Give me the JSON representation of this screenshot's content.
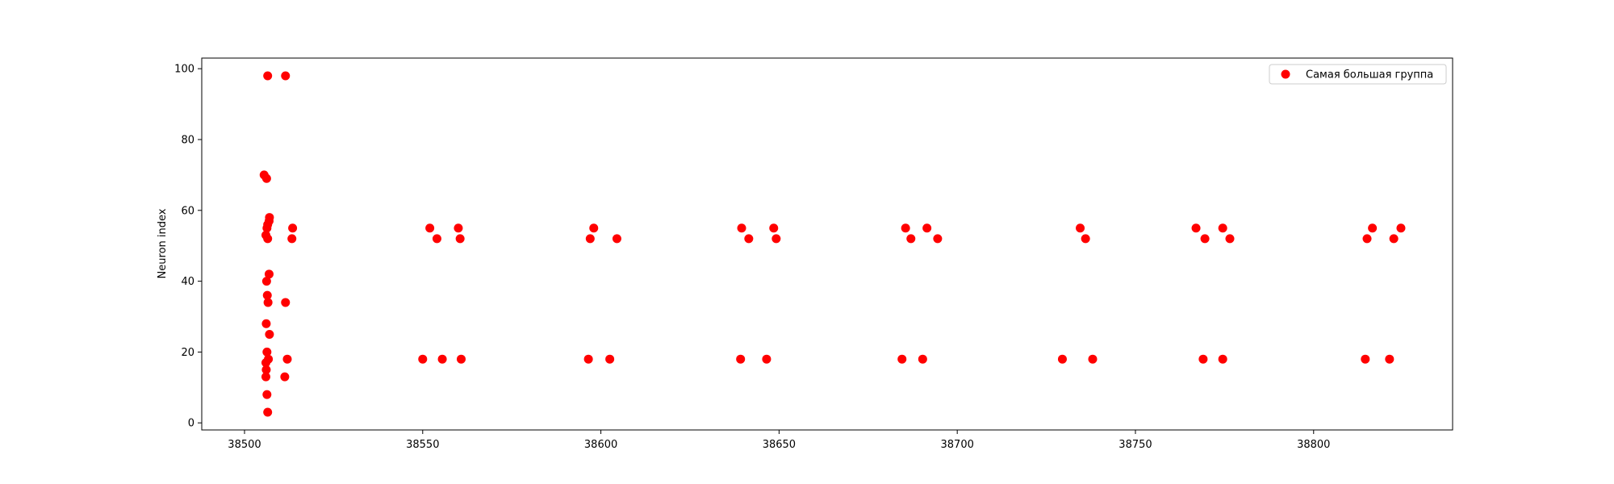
{
  "chart_data": {
    "type": "scatter",
    "title": "",
    "xlabel": "",
    "ylabel": "Neuron index",
    "xlim": [
      38488,
      38839
    ],
    "ylim": [
      -2,
      103
    ],
    "xticks": [
      38500,
      38550,
      38600,
      38650,
      38700,
      38750,
      38800
    ],
    "yticks": [
      0,
      20,
      40,
      60,
      80,
      100
    ],
    "grid": false,
    "legend_position": "top-right",
    "series": [
      {
        "name": "Самая большая группа",
        "color": "#ff0000",
        "points": [
          [
            38506.5,
            98
          ],
          [
            38511.5,
            98
          ],
          [
            38505.5,
            70
          ],
          [
            38506.2,
            69
          ],
          [
            38507.0,
            58
          ],
          [
            38506.9,
            57
          ],
          [
            38506.5,
            56
          ],
          [
            38506.3,
            55
          ],
          [
            38513.5,
            55
          ],
          [
            38506.0,
            53
          ],
          [
            38506.5,
            52
          ],
          [
            38513.3,
            52
          ],
          [
            38506.9,
            42
          ],
          [
            38506.2,
            40
          ],
          [
            38506.4,
            36
          ],
          [
            38506.6,
            34
          ],
          [
            38511.5,
            34
          ],
          [
            38506.1,
            28
          ],
          [
            38507.0,
            25
          ],
          [
            38506.3,
            20
          ],
          [
            38506.7,
            18
          ],
          [
            38506.0,
            17
          ],
          [
            38512.0,
            18
          ],
          [
            38506.1,
            15
          ],
          [
            38506.0,
            13
          ],
          [
            38511.3,
            13
          ],
          [
            38506.3,
            8
          ],
          [
            38506.5,
            3
          ],
          [
            38552.0,
            55
          ],
          [
            38554.0,
            52
          ],
          [
            38560.0,
            55
          ],
          [
            38560.5,
            52
          ],
          [
            38550.0,
            18
          ],
          [
            38555.5,
            18
          ],
          [
            38560.8,
            18
          ],
          [
            38598.0,
            55
          ],
          [
            38597.0,
            52
          ],
          [
            38604.5,
            52
          ],
          [
            38596.5,
            18
          ],
          [
            38602.5,
            18
          ],
          [
            38639.5,
            55
          ],
          [
            38641.5,
            52
          ],
          [
            38648.5,
            55
          ],
          [
            38649.2,
            52
          ],
          [
            38639.2,
            18
          ],
          [
            38646.5,
            18
          ],
          [
            38685.5,
            55
          ],
          [
            38687.0,
            52
          ],
          [
            38691.5,
            55
          ],
          [
            38694.5,
            52
          ],
          [
            38684.5,
            18
          ],
          [
            38690.3,
            18
          ],
          [
            38734.5,
            55
          ],
          [
            38736.0,
            52
          ],
          [
            38729.5,
            18
          ],
          [
            38738.0,
            18
          ],
          [
            38767.0,
            55
          ],
          [
            38769.5,
            52
          ],
          [
            38774.5,
            55
          ],
          [
            38776.5,
            52
          ],
          [
            38769.0,
            18
          ],
          [
            38774.5,
            18
          ],
          [
            38816.5,
            55
          ],
          [
            38815.0,
            52
          ],
          [
            38824.5,
            55
          ],
          [
            38822.5,
            52
          ],
          [
            38814.5,
            18
          ],
          [
            38821.3,
            18
          ]
        ]
      }
    ]
  }
}
